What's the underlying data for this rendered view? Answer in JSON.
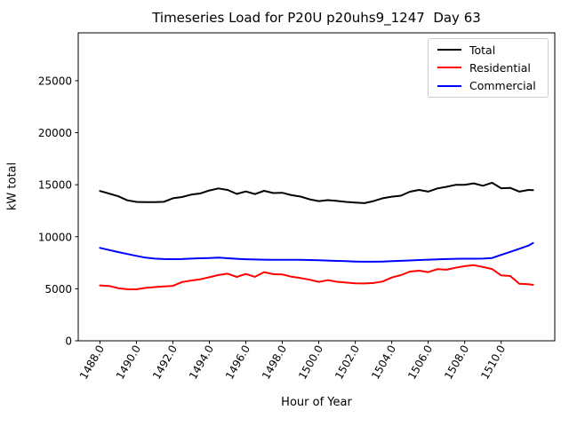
{
  "figure": {
    "title": "Timeseries Load for P20U p20uhs9_1247  Day 63"
  },
  "chart_data": {
    "type": "line",
    "title": "Timeseries Load for P20U p20uhs9_1247  Day 63",
    "xlabel": "Hour of Year",
    "ylabel": "kW total",
    "xlim": [
      1486.81,
      1512.94
    ],
    "ylim": [
      0,
      29600
    ],
    "grid": false,
    "legend_position": "upper right",
    "x_ticks": [
      1488,
      1490,
      1492,
      1494,
      1496,
      1498,
      1500,
      1502,
      1504,
      1506,
      1508,
      1510
    ],
    "x_tick_labels": [
      "1488.0",
      "1490.0",
      "1492.0",
      "1494.0",
      "1496.0",
      "1498.0",
      "1500.0",
      "1502.0",
      "1504.0",
      "1506.0",
      "1508.0",
      "1510.0"
    ],
    "y_ticks": [
      0,
      5000,
      10000,
      15000,
      20000,
      25000
    ],
    "y_tick_labels": [
      "0",
      "5000",
      "10000",
      "15000",
      "20000",
      "25000"
    ],
    "x": [
      1488.0,
      1488.5,
      1489.0,
      1489.5,
      1490.0,
      1490.5,
      1491.0,
      1491.5,
      1492.0,
      1492.5,
      1493.0,
      1493.5,
      1494.0,
      1494.5,
      1495.0,
      1495.5,
      1496.0,
      1496.5,
      1497.0,
      1497.5,
      1498.0,
      1498.5,
      1499.0,
      1499.5,
      1500.0,
      1500.5,
      1501.0,
      1501.5,
      1502.0,
      1502.5,
      1503.0,
      1503.5,
      1504.0,
      1504.5,
      1505.0,
      1505.5,
      1506.0,
      1506.5,
      1507.0,
      1507.5,
      1508.0,
      1508.5,
      1509.0,
      1509.5,
      1510.0,
      1510.5,
      1511.0,
      1511.5,
      1511.75
    ],
    "series": [
      {
        "name": "Total",
        "color": "#000000",
        "values": [
          14400,
          14150,
          13900,
          13500,
          13350,
          13320,
          13320,
          13360,
          13700,
          13820,
          14050,
          14160,
          14450,
          14650,
          14500,
          14120,
          14360,
          14100,
          14420,
          14200,
          14230,
          14000,
          13860,
          13600,
          13430,
          13520,
          13440,
          13350,
          13290,
          13230,
          13430,
          13700,
          13850,
          13950,
          14330,
          14500,
          14340,
          14650,
          14800,
          14990,
          15000,
          15130,
          14900,
          15190,
          14660,
          14700,
          14340,
          14500,
          14480
        ]
      },
      {
        "name": "Residential",
        "color": "#ff0000",
        "values": [
          5320,
          5270,
          5060,
          4960,
          4950,
          5080,
          5160,
          5230,
          5280,
          5650,
          5790,
          5910,
          6110,
          6320,
          6450,
          6140,
          6420,
          6150,
          6600,
          6410,
          6380,
          6160,
          6030,
          5870,
          5660,
          5830,
          5670,
          5600,
          5530,
          5510,
          5550,
          5700,
          6080,
          6310,
          6650,
          6740,
          6600,
          6880,
          6830,
          7020,
          7170,
          7270,
          7100,
          6900,
          6290,
          6230,
          5480,
          5430,
          5370
        ]
      },
      {
        "name": "Commercial",
        "color": "#0000ff",
        "values": [
          8930,
          8730,
          8530,
          8340,
          8160,
          7990,
          7900,
          7860,
          7850,
          7860,
          7900,
          7930,
          7960,
          7990,
          7930,
          7880,
          7840,
          7810,
          7800,
          7790,
          7790,
          7790,
          7780,
          7760,
          7740,
          7710,
          7680,
          7650,
          7620,
          7600,
          7600,
          7620,
          7650,
          7690,
          7720,
          7760,
          7800,
          7830,
          7860,
          7880,
          7890,
          7890,
          7900,
          7960,
          8260,
          8550,
          8850,
          9150,
          9400
        ]
      }
    ]
  }
}
